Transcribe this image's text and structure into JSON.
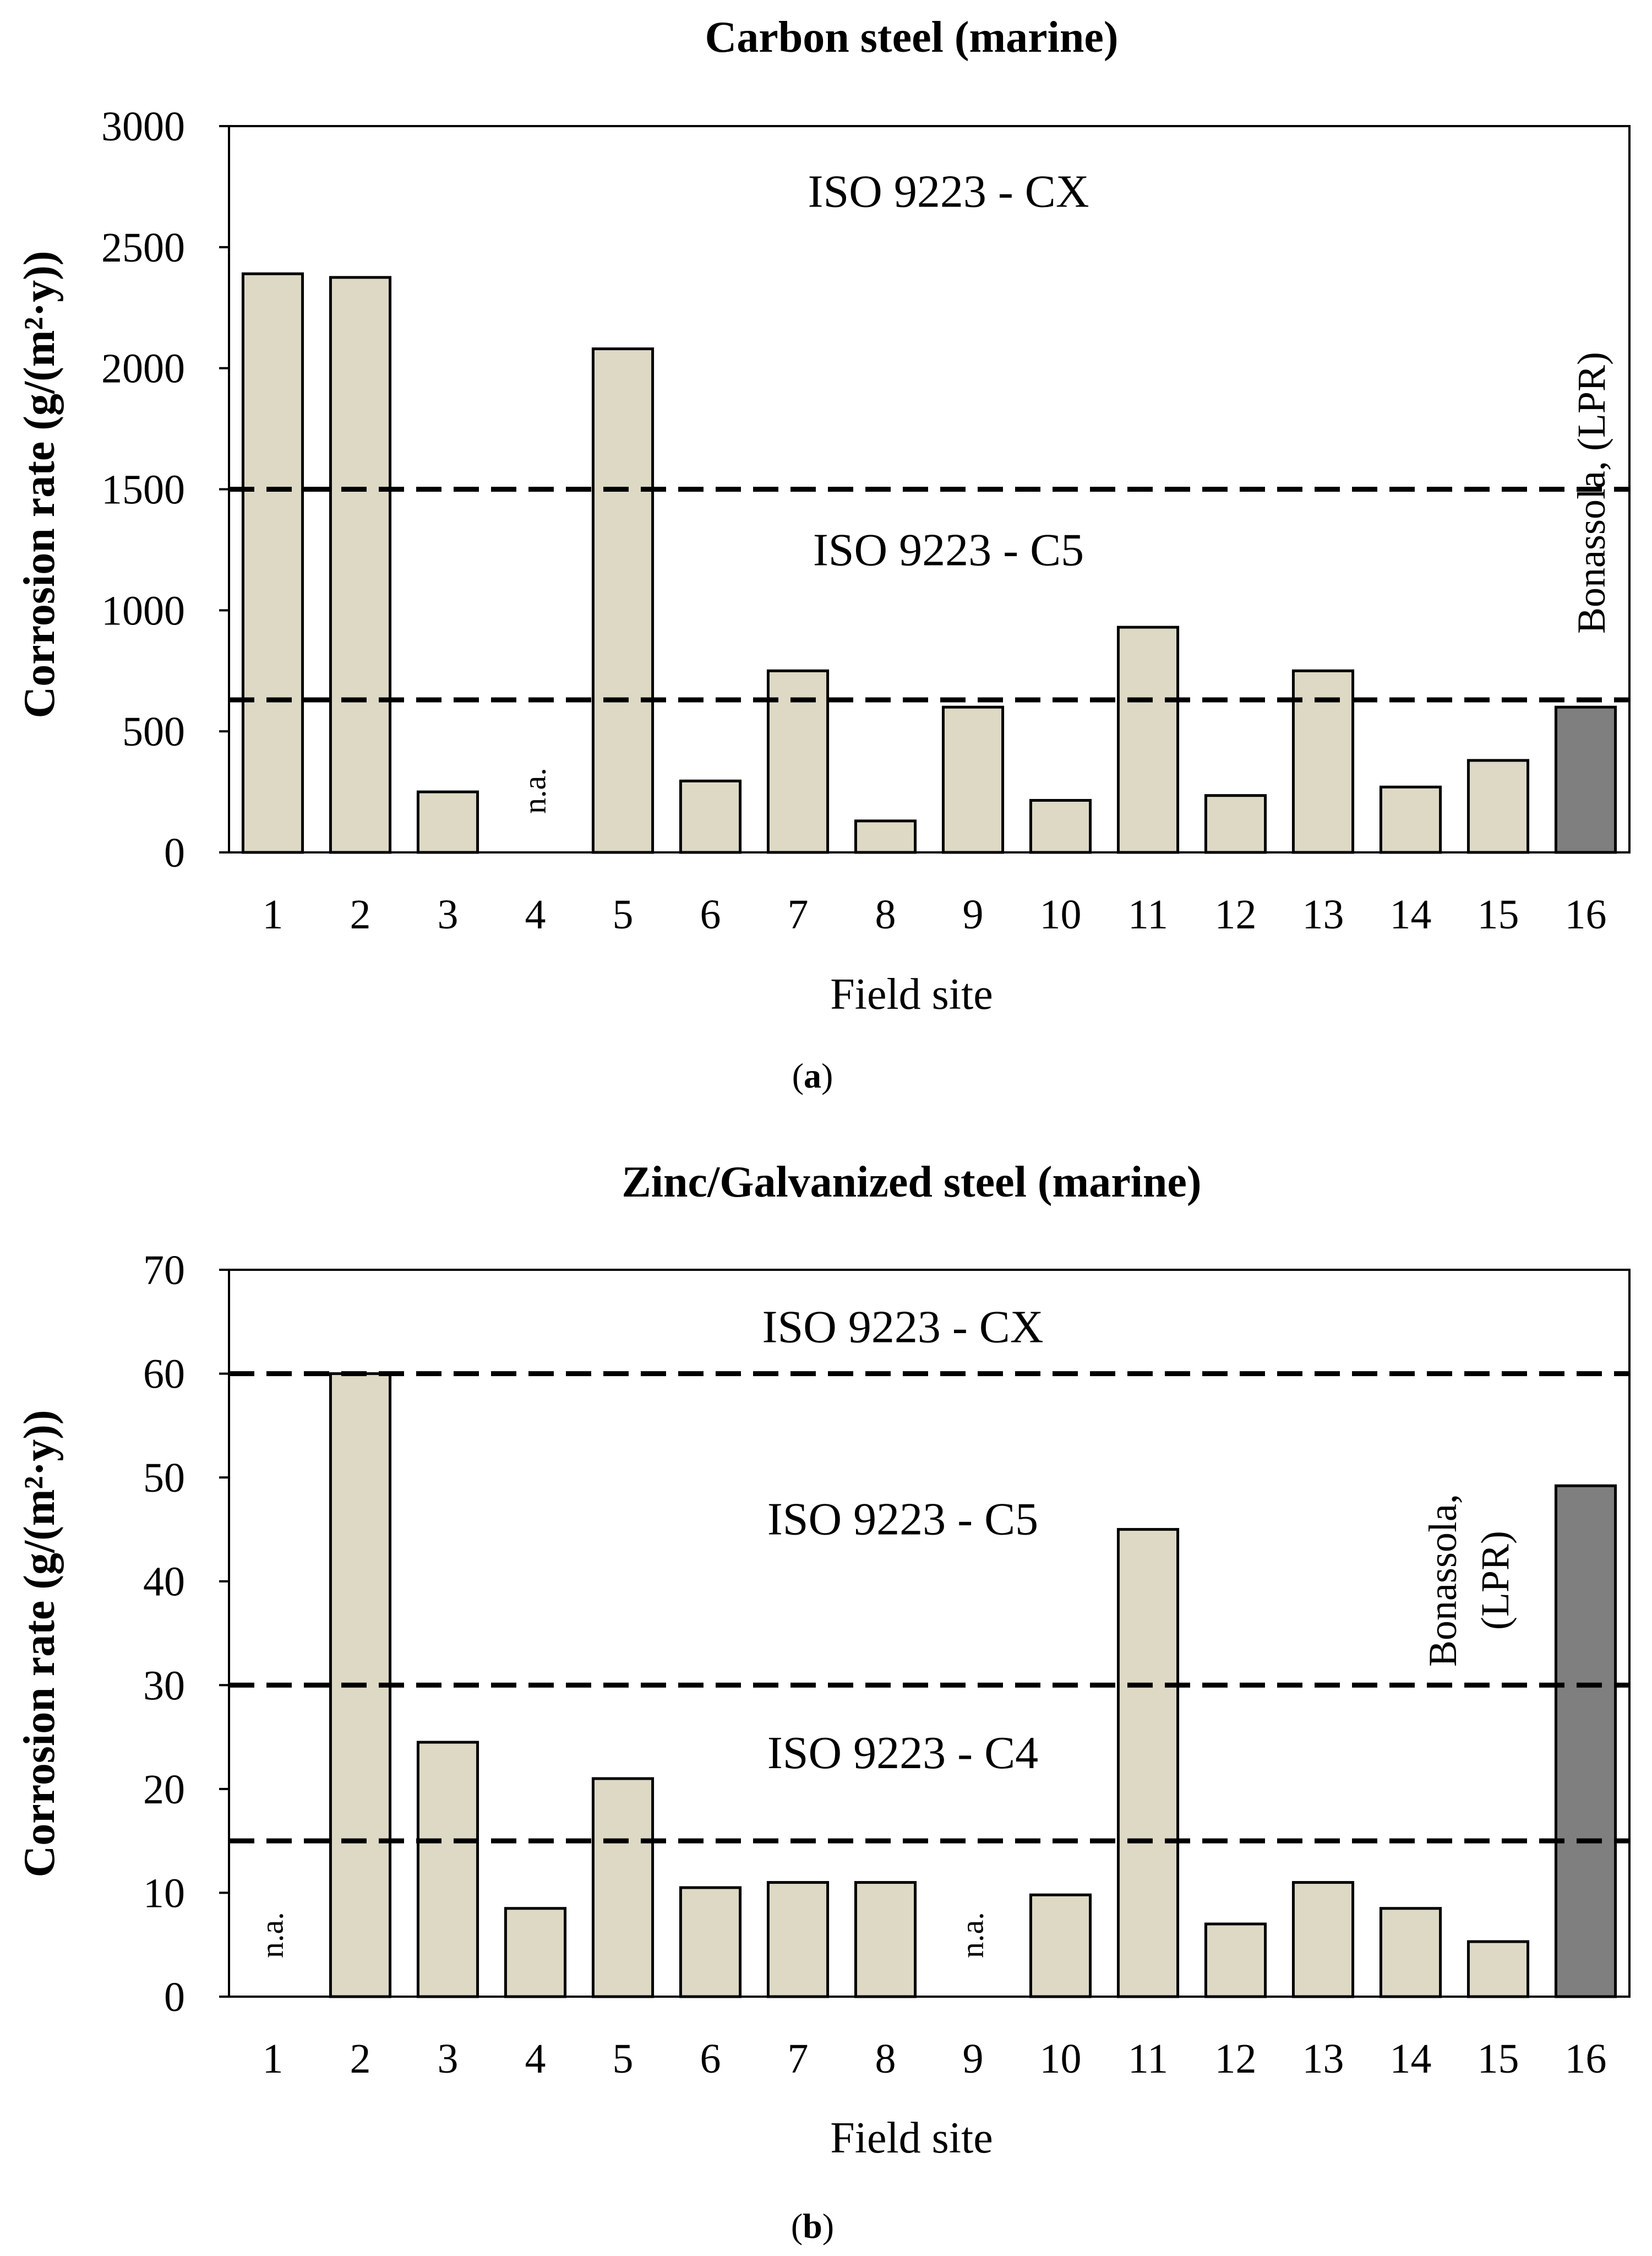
{
  "colors": {
    "bar_fill": "#ddd9c4",
    "bar_highlight": "#7f7f7f",
    "stroke": "#000000"
  },
  "chart_data": [
    {
      "type": "bar",
      "id": "a",
      "title": "Carbon steel (marine)",
      "xlabel": "Field site",
      "ylabel": "Corrosion rate (g/(m²·y))",
      "panel_label": "a",
      "categories": [
        "1",
        "2",
        "3",
        "4",
        "5",
        "6",
        "7",
        "8",
        "9",
        "10",
        "11",
        "12",
        "13",
        "14",
        "15",
        "16"
      ],
      "values": [
        2390,
        2375,
        250,
        null,
        2080,
        295,
        750,
        130,
        600,
        215,
        930,
        235,
        750,
        270,
        380,
        600
      ],
      "highlight_index": 15,
      "ylim": [
        0,
        3000
      ],
      "yticks": [
        0,
        500,
        1000,
        1500,
        2000,
        2500,
        3000
      ],
      "na_label": "n.a.",
      "thresholds": [
        1500,
        630
      ],
      "zones": [
        {
          "label": "ISO 9223 - CX",
          "y": 2730
        },
        {
          "label": "ISO 9223 - C5",
          "y": 1250
        }
      ],
      "highlight_note": "Bonassola, (LPR)"
    },
    {
      "type": "bar",
      "id": "b",
      "title": "Zinc/Galvanized steel (marine)",
      "xlabel": "Field site",
      "ylabel": "Corrosion rate (g/(m²·y))",
      "panel_label": "b",
      "categories": [
        "1",
        "2",
        "3",
        "4",
        "5",
        "6",
        "7",
        "8",
        "9",
        "10",
        "11",
        "12",
        "13",
        "14",
        "15",
        "16"
      ],
      "values": [
        null,
        60,
        24.5,
        8.5,
        21,
        10.5,
        11,
        11,
        null,
        9.8,
        45,
        7,
        11,
        8.5,
        5.3,
        49.2
      ],
      "highlight_index": 15,
      "ylim": [
        0,
        70
      ],
      "yticks": [
        0,
        10,
        20,
        30,
        40,
        50,
        60,
        70
      ],
      "na_label": "n.a.",
      "thresholds": [
        60,
        30,
        15
      ],
      "zones": [
        {
          "label": "ISO 9223 - CX",
          "y": 64.5
        },
        {
          "label": "ISO 9223 - C5",
          "y": 46
        },
        {
          "label": "ISO 9223 - C4",
          "y": 23.5
        }
      ],
      "highlight_note_lines": [
        "Bonassola,",
        "(LPR)"
      ]
    }
  ]
}
